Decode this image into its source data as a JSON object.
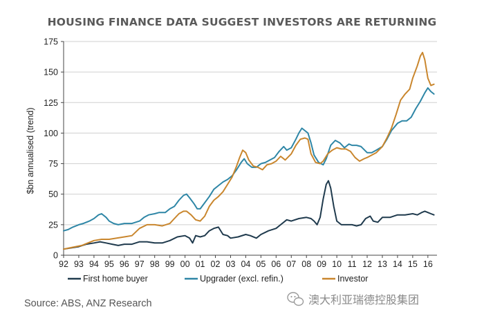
{
  "chart_data": {
    "type": "line",
    "title": "HOUSING FINANCE DATA SUGGEST INVESTORS ARE RETURNING",
    "ylabel": "$bn annualised (trend)",
    "xlabel": "",
    "ylim": [
      0,
      175
    ],
    "yticks": [
      0,
      25,
      50,
      75,
      100,
      125,
      150,
      175
    ],
    "xlim": [
      1992,
      2016.6
    ],
    "xticks": [
      1992,
      1993,
      1994,
      1995,
      1996,
      1997,
      1998,
      1999,
      2000,
      2001,
      2002,
      2003,
      2004,
      2005,
      2006,
      2007,
      2008,
      2009,
      2010,
      2011,
      2012,
      2013,
      2014,
      2015,
      2016
    ],
    "xticklabels": [
      "92",
      "93",
      "94",
      "95",
      "96",
      "97",
      "98",
      "99",
      "00",
      "01",
      "02",
      "03",
      "04",
      "05",
      "06",
      "07",
      "08",
      "09",
      "10",
      "11",
      "12",
      "13",
      "14",
      "15",
      "16"
    ],
    "grid": "horizontal",
    "legend_position": "bottom",
    "series": [
      {
        "name": "First home buyer",
        "color": "#1f3a4d",
        "points": [
          [
            1992.0,
            5
          ],
          [
            1992.5,
            6
          ],
          [
            1993.0,
            7
          ],
          [
            1993.5,
            9
          ],
          [
            1994.0,
            10
          ],
          [
            1994.4,
            11
          ],
          [
            1994.8,
            10
          ],
          [
            1995.2,
            9
          ],
          [
            1995.6,
            8
          ],
          [
            1996.0,
            9
          ],
          [
            1996.5,
            9
          ],
          [
            1997.0,
            11
          ],
          [
            1997.5,
            11
          ],
          [
            1998.0,
            10
          ],
          [
            1998.5,
            10
          ],
          [
            1999.0,
            12
          ],
          [
            1999.5,
            15
          ],
          [
            2000.0,
            16
          ],
          [
            2000.3,
            14
          ],
          [
            2000.5,
            10
          ],
          [
            2000.7,
            16
          ],
          [
            2001.0,
            15
          ],
          [
            2001.3,
            16
          ],
          [
            2001.6,
            20
          ],
          [
            2001.9,
            22
          ],
          [
            2002.2,
            23
          ],
          [
            2002.5,
            17
          ],
          [
            2002.8,
            16
          ],
          [
            2003.0,
            14
          ],
          [
            2003.5,
            15
          ],
          [
            2004.0,
            17
          ],
          [
            2004.3,
            16
          ],
          [
            2004.7,
            14
          ],
          [
            2005.0,
            17
          ],
          [
            2005.5,
            20
          ],
          [
            2006.0,
            22
          ],
          [
            2006.3,
            25
          ],
          [
            2006.7,
            29
          ],
          [
            2007.0,
            28
          ],
          [
            2007.5,
            30
          ],
          [
            2008.0,
            31
          ],
          [
            2008.3,
            30
          ],
          [
            2008.5,
            28
          ],
          [
            2008.7,
            25
          ],
          [
            2008.9,
            31
          ],
          [
            2009.1,
            46
          ],
          [
            2009.3,
            58
          ],
          [
            2009.45,
            61
          ],
          [
            2009.6,
            55
          ],
          [
            2009.8,
            40
          ],
          [
            2010.0,
            28
          ],
          [
            2010.3,
            25
          ],
          [
            2010.6,
            25
          ],
          [
            2011.0,
            25
          ],
          [
            2011.3,
            24
          ],
          [
            2011.6,
            25
          ],
          [
            2011.9,
            30
          ],
          [
            2012.2,
            32
          ],
          [
            2012.4,
            28
          ],
          [
            2012.7,
            27
          ],
          [
            2013.0,
            31
          ],
          [
            2013.5,
            31
          ],
          [
            2014.0,
            33
          ],
          [
            2014.5,
            33
          ],
          [
            2015.0,
            34
          ],
          [
            2015.3,
            33
          ],
          [
            2015.6,
            35
          ],
          [
            2015.8,
            36
          ],
          [
            2016.0,
            35
          ],
          [
            2016.2,
            34
          ],
          [
            2016.4,
            33
          ]
        ]
      },
      {
        "name": "Upgrader (excl. refin.)",
        "color": "#2e86a6",
        "points": [
          [
            1992.0,
            20
          ],
          [
            1992.3,
            21
          ],
          [
            1992.6,
            23
          ],
          [
            1993.0,
            25
          ],
          [
            1993.3,
            26
          ],
          [
            1993.7,
            28
          ],
          [
            1994.0,
            30
          ],
          [
            1994.3,
            33
          ],
          [
            1994.5,
            34
          ],
          [
            1994.8,
            31
          ],
          [
            1995.0,
            28
          ],
          [
            1995.3,
            26
          ],
          [
            1995.6,
            25
          ],
          [
            1996.0,
            26
          ],
          [
            1996.5,
            26
          ],
          [
            1997.0,
            28
          ],
          [
            1997.3,
            31
          ],
          [
            1997.6,
            33
          ],
          [
            1998.0,
            34
          ],
          [
            1998.3,
            35
          ],
          [
            1998.7,
            35
          ],
          [
            1999.0,
            38
          ],
          [
            1999.3,
            40
          ],
          [
            1999.6,
            45
          ],
          [
            1999.9,
            49
          ],
          [
            2000.1,
            50
          ],
          [
            2000.3,
            47
          ],
          [
            2000.6,
            42
          ],
          [
            2000.8,
            38
          ],
          [
            2001.0,
            38
          ],
          [
            2001.3,
            43
          ],
          [
            2001.6,
            48
          ],
          [
            2001.9,
            54
          ],
          [
            2002.2,
            57
          ],
          [
            2002.5,
            60
          ],
          [
            2002.8,
            62
          ],
          [
            2003.1,
            65
          ],
          [
            2003.4,
            70
          ],
          [
            2003.7,
            76
          ],
          [
            2003.9,
            79
          ],
          [
            2004.1,
            75
          ],
          [
            2004.4,
            72
          ],
          [
            2004.7,
            72
          ],
          [
            2005.0,
            75
          ],
          [
            2005.3,
            76
          ],
          [
            2005.6,
            78
          ],
          [
            2005.9,
            80
          ],
          [
            2006.2,
            85
          ],
          [
            2006.5,
            89
          ],
          [
            2006.7,
            86
          ],
          [
            2007.0,
            88
          ],
          [
            2007.3,
            95
          ],
          [
            2007.5,
            100
          ],
          [
            2007.7,
            104
          ],
          [
            2007.9,
            102
          ],
          [
            2008.1,
            100
          ],
          [
            2008.3,
            92
          ],
          [
            2008.5,
            82
          ],
          [
            2008.8,
            76
          ],
          [
            2009.1,
            74
          ],
          [
            2009.3,
            79
          ],
          [
            2009.6,
            90
          ],
          [
            2009.9,
            94
          ],
          [
            2010.2,
            92
          ],
          [
            2010.5,
            88
          ],
          [
            2010.8,
            91
          ],
          [
            2011.0,
            90
          ],
          [
            2011.3,
            90
          ],
          [
            2011.6,
            89
          ],
          [
            2012.0,
            84
          ],
          [
            2012.3,
            84
          ],
          [
            2012.6,
            86
          ],
          [
            2013.0,
            89
          ],
          [
            2013.3,
            95
          ],
          [
            2013.6,
            102
          ],
          [
            2014.0,
            108
          ],
          [
            2014.3,
            110
          ],
          [
            2014.6,
            110
          ],
          [
            2014.9,
            113
          ],
          [
            2015.2,
            120
          ],
          [
            2015.5,
            126
          ],
          [
            2015.8,
            133
          ],
          [
            2016.0,
            137
          ],
          [
            2016.2,
            134
          ],
          [
            2016.4,
            132
          ]
        ]
      },
      {
        "name": "Investor",
        "color": "#c9862d",
        "points": [
          [
            1992.0,
            5
          ],
          [
            1992.4,
            6
          ],
          [
            1992.8,
            7
          ],
          [
            1993.2,
            8
          ],
          [
            1993.6,
            10
          ],
          [
            1994.0,
            12
          ],
          [
            1994.5,
            13
          ],
          [
            1995.0,
            13
          ],
          [
            1995.5,
            14
          ],
          [
            1996.0,
            15
          ],
          [
            1996.5,
            16
          ],
          [
            1997.0,
            22
          ],
          [
            1997.5,
            25
          ],
          [
            1998.0,
            25
          ],
          [
            1998.5,
            24
          ],
          [
            1999.0,
            26
          ],
          [
            1999.3,
            30
          ],
          [
            1999.6,
            34
          ],
          [
            1999.9,
            36
          ],
          [
            2000.1,
            36
          ],
          [
            2000.4,
            33
          ],
          [
            2000.7,
            29
          ],
          [
            2001.0,
            28
          ],
          [
            2001.3,
            32
          ],
          [
            2001.6,
            40
          ],
          [
            2001.9,
            45
          ],
          [
            2002.2,
            48
          ],
          [
            2002.5,
            52
          ],
          [
            2002.8,
            58
          ],
          [
            2003.1,
            64
          ],
          [
            2003.4,
            73
          ],
          [
            2003.6,
            80
          ],
          [
            2003.8,
            86
          ],
          [
            2004.0,
            84
          ],
          [
            2004.2,
            78
          ],
          [
            2004.5,
            73
          ],
          [
            2004.8,
            72
          ],
          [
            2005.1,
            70
          ],
          [
            2005.4,
            74
          ],
          [
            2005.7,
            75
          ],
          [
            2006.0,
            77
          ],
          [
            2006.3,
            81
          ],
          [
            2006.6,
            78
          ],
          [
            2007.0,
            83
          ],
          [
            2007.3,
            90
          ],
          [
            2007.6,
            95
          ],
          [
            2007.9,
            96
          ],
          [
            2008.1,
            95
          ],
          [
            2008.3,
            83
          ],
          [
            2008.6,
            76
          ],
          [
            2008.9,
            75
          ],
          [
            2009.1,
            77
          ],
          [
            2009.4,
            83
          ],
          [
            2009.7,
            86
          ],
          [
            2010.0,
            88
          ],
          [
            2010.3,
            87
          ],
          [
            2010.6,
            87
          ],
          [
            2010.9,
            85
          ],
          [
            2011.2,
            80
          ],
          [
            2011.5,
            77
          ],
          [
            2011.8,
            79
          ],
          [
            2012.0,
            80
          ],
          [
            2012.3,
            82
          ],
          [
            2012.6,
            84
          ],
          [
            2013.0,
            89
          ],
          [
            2013.3,
            96
          ],
          [
            2013.6,
            104
          ],
          [
            2013.9,
            115
          ],
          [
            2014.2,
            127
          ],
          [
            2014.5,
            132
          ],
          [
            2014.8,
            136
          ],
          [
            2015.0,
            145
          ],
          [
            2015.3,
            155
          ],
          [
            2015.5,
            163
          ],
          [
            2015.65,
            166
          ],
          [
            2015.8,
            160
          ],
          [
            2016.0,
            145
          ],
          [
            2016.2,
            139
          ],
          [
            2016.4,
            140
          ]
        ]
      }
    ]
  },
  "source_text": "Source: ABS, ANZ Research",
  "watermark_text": "澳大利亚瑞德控股集团",
  "watermark_icon": "wechat-icon"
}
